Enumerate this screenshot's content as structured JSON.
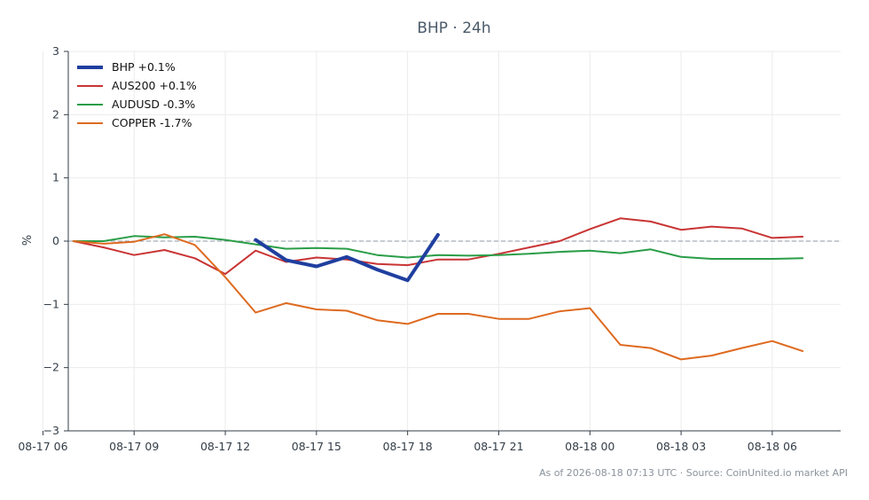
{
  "title": "BHP · 24h",
  "footer": "As of 2026-08-18 07:13 UTC · Source: CoinUnited.io market API",
  "chart_data": {
    "type": "line",
    "title": "BHP · 24h",
    "ylabel": "%",
    "xlabel": "",
    "ylim": [
      -3,
      3
    ],
    "xlim": [
      "2026-08-17 06:50",
      "2026-08-18 08:15"
    ],
    "yticks": [
      3,
      2,
      1,
      0,
      -1,
      -2,
      -3
    ],
    "ytick_labels": [
      "3",
      "2",
      "1",
      "0",
      "−1",
      "−2",
      "−3"
    ],
    "xticks": [
      "2026-08-17 06:00",
      "2026-08-17 09:00",
      "2026-08-17 12:00",
      "2026-08-17 15:00",
      "2026-08-17 18:00",
      "2026-08-17 21:00",
      "2026-08-18 00:00",
      "2026-08-18 03:00",
      "2026-08-18 06:00"
    ],
    "xtick_labels": [
      "08-17 06",
      "08-17 09",
      "08-17 12",
      "08-17 15",
      "08-17 18",
      "08-17 21",
      "08-18 00",
      "08-18 03",
      "08-18 06"
    ],
    "grid": true,
    "zero_line": true,
    "legend_position": "top-left",
    "series": [
      {
        "name": "BHP +0.1%",
        "color": "#1f3f9f",
        "width": 4,
        "x": [
          "2026-08-17 13:00",
          "2026-08-17 14:00",
          "2026-08-17 15:00",
          "2026-08-17 16:00",
          "2026-08-17 17:00",
          "2026-08-17 18:00",
          "2026-08-17 19:00"
        ],
        "values": [
          0.02,
          -0.3,
          -0.4,
          -0.25,
          -0.45,
          -0.62,
          0.1
        ]
      },
      {
        "name": "AUS200 +0.1%",
        "color": "#c93434",
        "width": 2,
        "x": [
          "2026-08-17 07:00",
          "2026-08-17 08:00",
          "2026-08-17 09:00",
          "2026-08-17 10:00",
          "2026-08-17 11:00",
          "2026-08-17 12:00",
          "2026-08-17 13:00",
          "2026-08-17 14:00",
          "2026-08-17 15:00",
          "2026-08-17 16:00",
          "2026-08-17 17:00",
          "2026-08-17 18:00",
          "2026-08-17 19:00",
          "2026-08-17 20:00",
          "2026-08-17 21:00",
          "2026-08-17 22:00",
          "2026-08-17 23:00",
          "2026-08-18 00:00",
          "2026-08-18 01:00",
          "2026-08-18 02:00",
          "2026-08-18 03:00",
          "2026-08-18 04:00",
          "2026-08-18 05:00",
          "2026-08-18 06:00",
          "2026-08-18 07:00"
        ],
        "values": [
          0.0,
          -0.1,
          -0.22,
          -0.14,
          -0.27,
          -0.52,
          -0.15,
          -0.33,
          -0.26,
          -0.29,
          -0.36,
          -0.38,
          -0.29,
          -0.29,
          -0.2,
          -0.1,
          0.0,
          0.19,
          0.36,
          0.31,
          0.18,
          0.23,
          0.2,
          0.05,
          0.07
        ]
      },
      {
        "name": "AUDUSD -0.3%",
        "color": "#2a9d48",
        "width": 2,
        "x": [
          "2026-08-17 07:00",
          "2026-08-17 08:00",
          "2026-08-17 09:00",
          "2026-08-17 10:00",
          "2026-08-17 11:00",
          "2026-08-17 12:00",
          "2026-08-17 13:00",
          "2026-08-17 14:00",
          "2026-08-17 15:00",
          "2026-08-17 16:00",
          "2026-08-17 17:00",
          "2026-08-17 18:00",
          "2026-08-17 19:00",
          "2026-08-17 20:00",
          "2026-08-17 21:00",
          "2026-08-17 22:00",
          "2026-08-17 23:00",
          "2026-08-18 00:00",
          "2026-08-18 01:00",
          "2026-08-18 02:00",
          "2026-08-18 03:00",
          "2026-08-18 04:00",
          "2026-08-18 05:00",
          "2026-08-18 06:00",
          "2026-08-18 07:00"
        ],
        "values": [
          0.0,
          0.0,
          0.08,
          0.06,
          0.07,
          0.02,
          -0.05,
          -0.12,
          -0.11,
          -0.12,
          -0.22,
          -0.26,
          -0.22,
          -0.23,
          -0.22,
          -0.2,
          -0.17,
          -0.15,
          -0.19,
          -0.13,
          -0.25,
          -0.28,
          -0.28,
          -0.28,
          -0.27
        ]
      },
      {
        "name": "COPPER -1.7%",
        "color": "#de6a20",
        "width": 2,
        "x": [
          "2026-08-17 07:00",
          "2026-08-17 08:00",
          "2026-08-17 09:00",
          "2026-08-17 10:00",
          "2026-08-17 11:00",
          "2026-08-17 12:00",
          "2026-08-17 13:00",
          "2026-08-17 14:00",
          "2026-08-17 15:00",
          "2026-08-17 16:00",
          "2026-08-17 17:00",
          "2026-08-17 18:00",
          "2026-08-17 19:00",
          "2026-08-17 20:00",
          "2026-08-17 21:00",
          "2026-08-17 22:00",
          "2026-08-17 23:00",
          "2026-08-18 00:00",
          "2026-08-18 01:00",
          "2026-08-18 02:00",
          "2026-08-18 03:00",
          "2026-08-18 04:00",
          "2026-08-18 05:00",
          "2026-08-18 06:00",
          "2026-08-18 07:00"
        ],
        "values": [
          0.0,
          -0.04,
          -0.01,
          0.11,
          -0.06,
          -0.57,
          -1.13,
          -0.98,
          -1.08,
          -1.1,
          -1.25,
          -1.31,
          -1.15,
          -1.15,
          -1.23,
          -1.23,
          -1.11,
          -1.06,
          -1.64,
          -1.69,
          -1.87,
          -1.81,
          -1.69,
          -1.58,
          -1.74
        ]
      }
    ]
  }
}
